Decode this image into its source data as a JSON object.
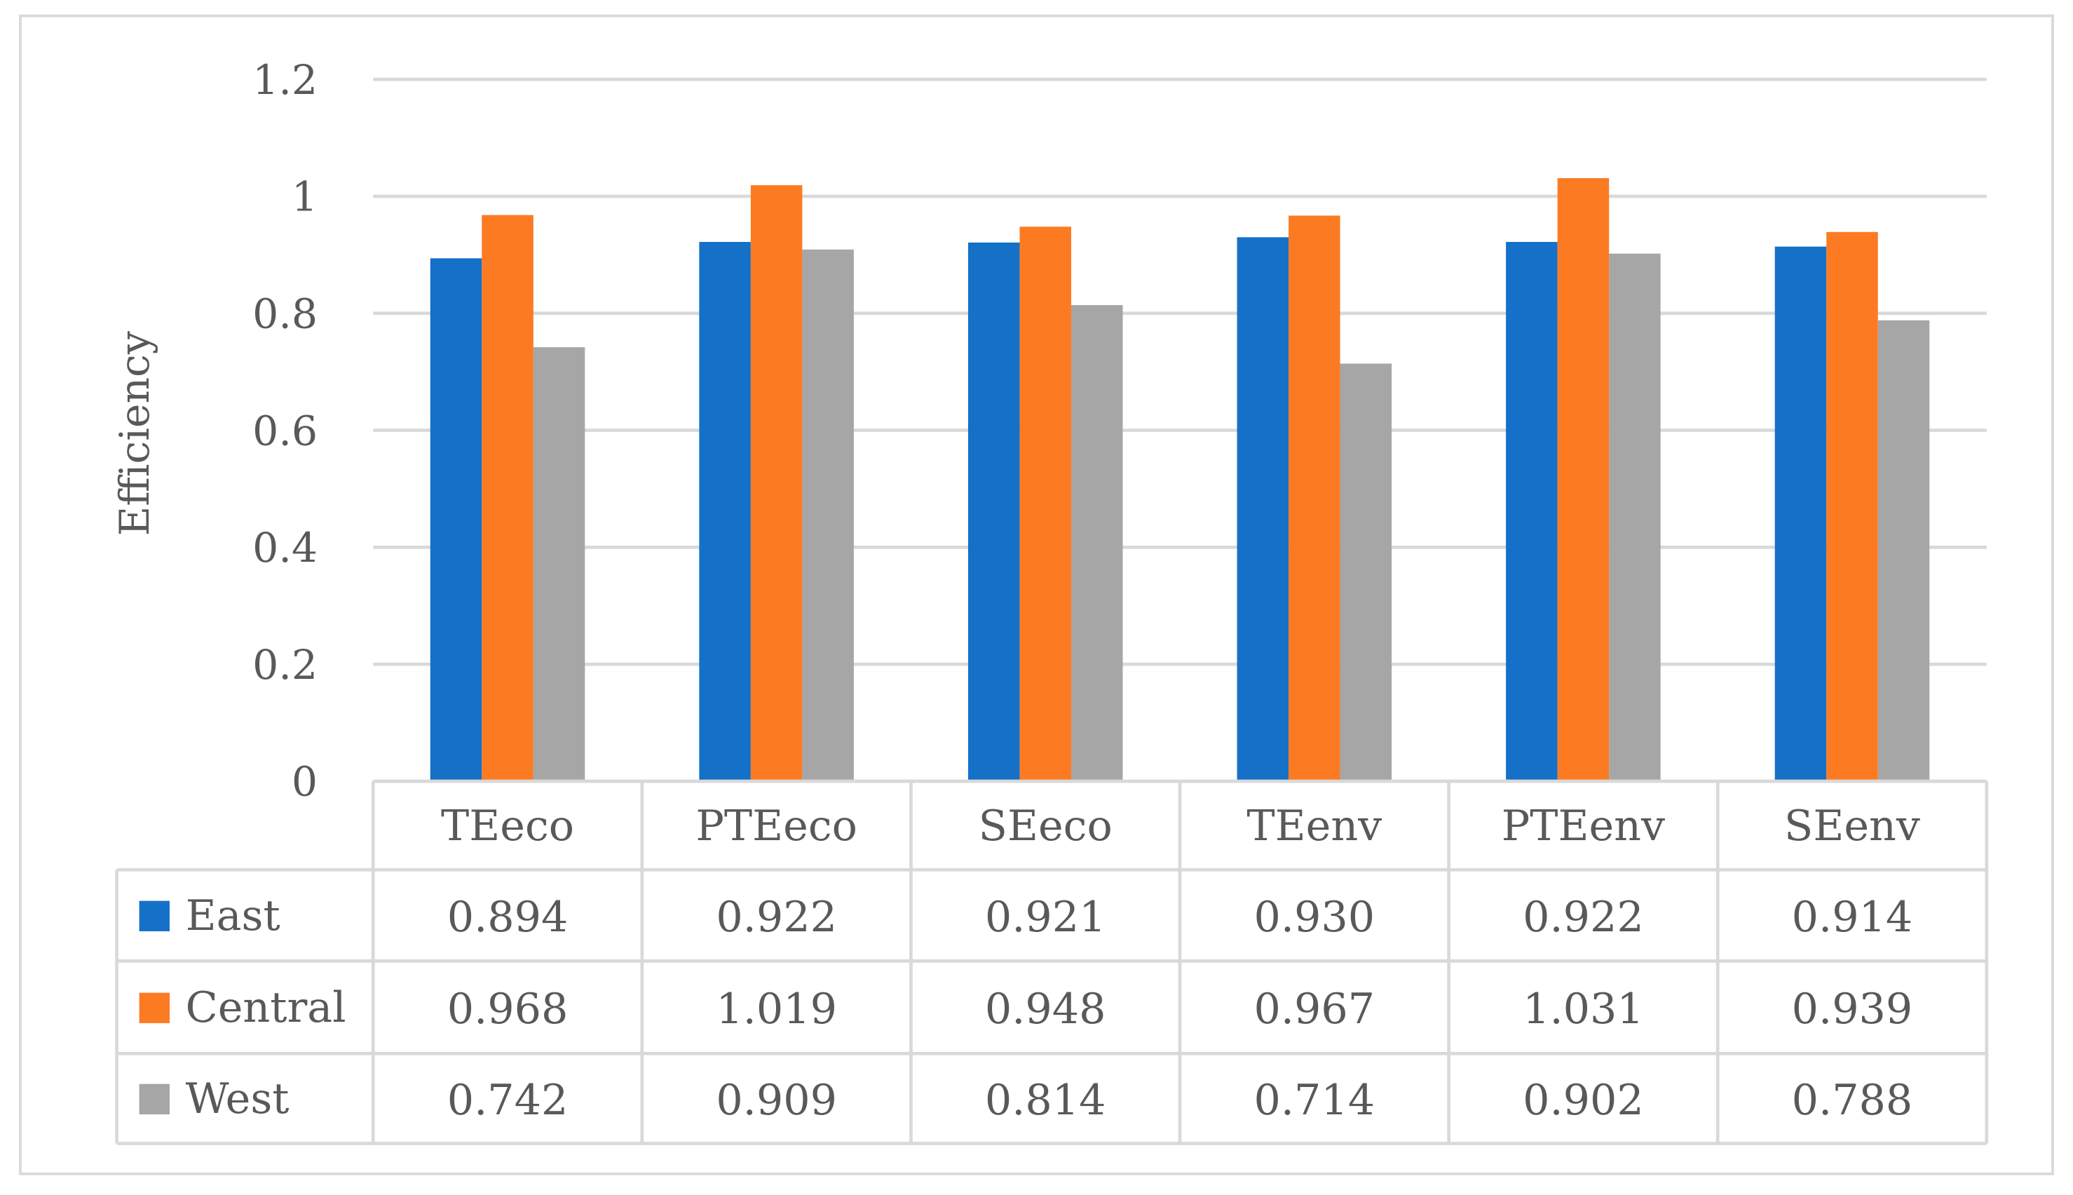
{
  "chart_data": {
    "type": "bar",
    "title": "",
    "xlabel": "",
    "ylabel": "Efficiency",
    "ylim": [
      0,
      1.2
    ],
    "yticks": [
      "0",
      "0.2",
      "0.4",
      "0.6",
      "0.8",
      "1",
      "1.2"
    ],
    "grid": true,
    "legend": "data-table-left",
    "categories": [
      "TEeco",
      "PTEeco",
      "SEeco",
      "TEenv",
      "PTEenv",
      "SEenv"
    ],
    "series": [
      {
        "name": "East",
        "color": "#1570c8",
        "values": [
          0.894,
          0.922,
          0.921,
          0.93,
          0.922,
          0.914
        ],
        "labels": [
          "0.894",
          "0.922",
          "0.921",
          "0.930",
          "0.922",
          "0.914"
        ]
      },
      {
        "name": "Central",
        "color": "#fc7b22",
        "values": [
          0.968,
          1.019,
          0.948,
          0.967,
          1.031,
          0.939
        ],
        "labels": [
          "0.968",
          "1.019",
          "0.948",
          "0.967",
          "1.031",
          "0.939"
        ]
      },
      {
        "name": "West",
        "color": "#a6a6a6",
        "values": [
          0.742,
          0.909,
          0.814,
          0.714,
          0.902,
          0.788
        ],
        "labels": [
          "0.742",
          "0.909",
          "0.814",
          "0.714",
          "0.902",
          "0.788"
        ]
      }
    ]
  }
}
